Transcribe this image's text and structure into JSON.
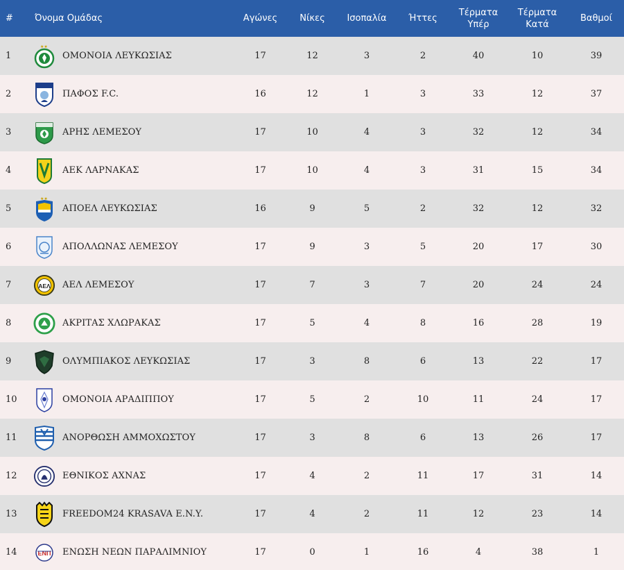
{
  "headers": {
    "pos": "#",
    "team": "Όνομα Ομάδας",
    "played": "Αγώνες",
    "wins": "Νίκες",
    "draws": "Ισοπαλία",
    "losses": "Ήττες",
    "goals_for_1": "Τέρματα",
    "goals_for_2": "Υπέρ",
    "goals_against_1": "Τέρματα",
    "goals_against_2": "Κατά",
    "points": "Βαθμοί"
  },
  "rows": [
    {
      "pos": "1",
      "team": "ΟΜΟΝΟΙΑ ΛΕΥΚΩΣΙΑΣ",
      "played": "17",
      "wins": "12",
      "draws": "3",
      "losses": "2",
      "gf": "40",
      "ga": "10",
      "pts": "39",
      "icon": "omonoia-badge-icon"
    },
    {
      "pos": "2",
      "team": "ΠΑΦΟΣ F.C.",
      "played": "16",
      "wins": "12",
      "draws": "1",
      "losses": "3",
      "gf": "33",
      "ga": "12",
      "pts": "37",
      "icon": "pafos-badge-icon"
    },
    {
      "pos": "3",
      "team": "ΑΡΗΣ ΛΕΜΕΣΟΥ",
      "played": "17",
      "wins": "10",
      "draws": "4",
      "losses": "3",
      "gf": "32",
      "ga": "12",
      "pts": "34",
      "icon": "aris-badge-icon"
    },
    {
      "pos": "4",
      "team": "ΑΕΚ ΛΑΡΝΑΚΑΣ",
      "played": "17",
      "wins": "10",
      "draws": "4",
      "losses": "3",
      "gf": "31",
      "ga": "15",
      "pts": "34",
      "icon": "aek-badge-icon"
    },
    {
      "pos": "5",
      "team": "ΑΠΟΕΛ ΛΕΥΚΩΣΙΑΣ",
      "played": "16",
      "wins": "9",
      "draws": "5",
      "losses": "2",
      "gf": "32",
      "ga": "12",
      "pts": "32",
      "icon": "apoel-badge-icon"
    },
    {
      "pos": "6",
      "team": "ΑΠΟΛΛΩΝΑΣ ΛΕΜΕΣΟΥ",
      "played": "17",
      "wins": "9",
      "draws": "3",
      "losses": "5",
      "gf": "20",
      "ga": "17",
      "pts": "30",
      "icon": "apollon-badge-icon"
    },
    {
      "pos": "7",
      "team": "ΑΕΛ ΛΕΜΕΣΟΥ",
      "played": "17",
      "wins": "7",
      "draws": "3",
      "losses": "7",
      "gf": "20",
      "ga": "24",
      "pts": "24",
      "icon": "ael-badge-icon"
    },
    {
      "pos": "8",
      "team": "ΑΚΡΙΤΑΣ ΧΛΩΡΑΚΑΣ",
      "played": "17",
      "wins": "5",
      "draws": "4",
      "losses": "8",
      "gf": "16",
      "ga": "28",
      "pts": "19",
      "icon": "akritas-badge-icon"
    },
    {
      "pos": "9",
      "team": "ΟΛΥΜΠΙΑΚΟΣ ΛΕΥΚΩΣΙΑΣ",
      "played": "17",
      "wins": "3",
      "draws": "8",
      "losses": "6",
      "gf": "13",
      "ga": "22",
      "pts": "17",
      "icon": "olympiakos-badge-icon"
    },
    {
      "pos": "10",
      "team": "ΟΜΟΝΟΙΑ ΑΡΑΔΙΠΠΟΥ",
      "played": "17",
      "wins": "5",
      "draws": "2",
      "losses": "10",
      "gf": "11",
      "ga": "24",
      "pts": "17",
      "icon": "omonoia-aradippou-badge-icon"
    },
    {
      "pos": "11",
      "team": "ΑΝΟΡΘΩΣΗ ΑΜΜΟΧΩΣΤΟΥ",
      "played": "17",
      "wins": "3",
      "draws": "8",
      "losses": "6",
      "gf": "13",
      "ga": "26",
      "pts": "17",
      "icon": "anorthosis-badge-icon"
    },
    {
      "pos": "12",
      "team": "ΕΘΝΙΚΟΣ ΑΧΝΑΣ",
      "played": "17",
      "wins": "4",
      "draws": "2",
      "losses": "11",
      "gf": "17",
      "ga": "31",
      "pts": "14",
      "icon": "ethnikos-badge-icon"
    },
    {
      "pos": "13",
      "team": "FREEDOM24 KRASAVA E.N.Y.",
      "played": "17",
      "wins": "4",
      "draws": "2",
      "losses": "11",
      "gf": "12",
      "ga": "23",
      "pts": "14",
      "icon": "krasava-badge-icon"
    },
    {
      "pos": "14",
      "team": "ΕΝΩΣΗ ΝΕΩΝ ΠΑΡΑΛΙΜΝΙΟΥ",
      "played": "17",
      "wins": "0",
      "draws": "1",
      "losses": "16",
      "gf": "4",
      "ga": "38",
      "pts": "1",
      "icon": "enp-badge-icon"
    }
  ],
  "colors": {
    "header_bg": "#2b5ea8",
    "row_alt_a": "#e0e0e0",
    "row_alt_b": "#f7eeee"
  }
}
